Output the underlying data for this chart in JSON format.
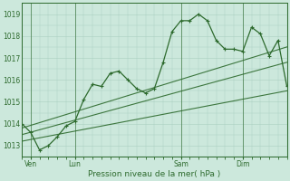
{
  "background_color": "#cce8dc",
  "grid_color": "#aacfc0",
  "line_color": "#2d6a2d",
  "text_color": "#2d6a2d",
  "xlabel": "Pression niveau de la mer( hPa )",
  "ylim": [
    1012.5,
    1019.5
  ],
  "xlim": [
    0,
    60
  ],
  "yticks": [
    1013,
    1014,
    1015,
    1016,
    1017,
    1018,
    1019
  ],
  "xtick_labels": [
    "Ven",
    "Lun",
    "Sam",
    "Dim"
  ],
  "xtick_positions": [
    2,
    12,
    36,
    50
  ],
  "series1_x": [
    0,
    2,
    4,
    6,
    8,
    10,
    12,
    14,
    16,
    18,
    20,
    22,
    24,
    26,
    28,
    30,
    32,
    34,
    36,
    38,
    40,
    42,
    44,
    46,
    48,
    50,
    52,
    54,
    56,
    58,
    60
  ],
  "series1_y": [
    1014.0,
    1013.6,
    1012.8,
    1013.0,
    1013.4,
    1013.9,
    1014.1,
    1015.1,
    1015.8,
    1015.7,
    1016.3,
    1016.4,
    1016.0,
    1015.6,
    1015.4,
    1015.6,
    1016.8,
    1018.2,
    1018.7,
    1018.7,
    1019.0,
    1018.7,
    1017.8,
    1017.4,
    1017.4,
    1017.3,
    1018.4,
    1018.1,
    1017.1,
    1017.8,
    1015.7
  ],
  "trend1_x": [
    0,
    60
  ],
  "trend1_y": [
    1013.8,
    1017.5
  ],
  "trend2_x": [
    0,
    60
  ],
  "trend2_y": [
    1013.5,
    1016.8
  ],
  "trend3_x": [
    0,
    60
  ],
  "trend3_y": [
    1013.2,
    1015.5
  ]
}
